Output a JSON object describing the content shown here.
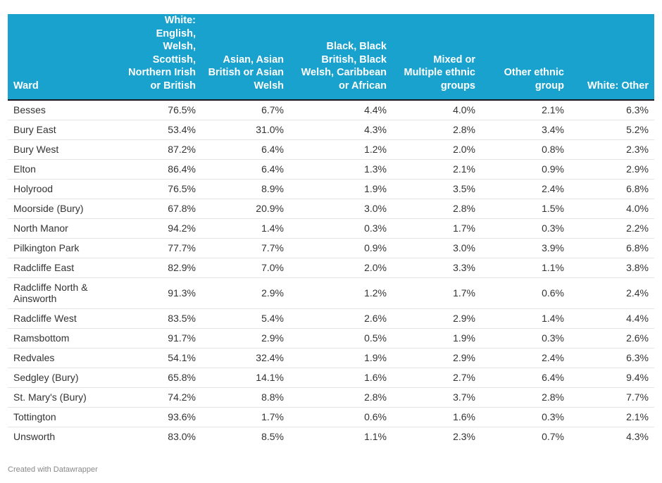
{
  "chart_data": {
    "type": "table",
    "columns": [
      "Ward",
      "White: English, Welsh, Scottish, Northern Irish or British",
      "Asian, Asian British or Asian Welsh",
      "Black, Black British, Black Welsh, Caribbean or African",
      "Mixed or Multiple ethnic groups",
      "Other ethnic group",
      "White: Other"
    ],
    "rows": [
      [
        "Besses",
        "76.5%",
        "6.7%",
        "4.4%",
        "4.0%",
        "2.1%",
        "6.3%"
      ],
      [
        "Bury East",
        "53.4%",
        "31.0%",
        "4.3%",
        "2.8%",
        "3.4%",
        "5.2%"
      ],
      [
        "Bury West",
        "87.2%",
        "6.4%",
        "1.2%",
        "2.0%",
        "0.8%",
        "2.3%"
      ],
      [
        "Elton",
        "86.4%",
        "6.4%",
        "1.3%",
        "2.1%",
        "0.9%",
        "2.9%"
      ],
      [
        "Holyrood",
        "76.5%",
        "8.9%",
        "1.9%",
        "3.5%",
        "2.4%",
        "6.8%"
      ],
      [
        "Moorside (Bury)",
        "67.8%",
        "20.9%",
        "3.0%",
        "2.8%",
        "1.5%",
        "4.0%"
      ],
      [
        "North Manor",
        "94.2%",
        "1.4%",
        "0.3%",
        "1.7%",
        "0.3%",
        "2.2%"
      ],
      [
        "Pilkington Park",
        "77.7%",
        "7.7%",
        "0.9%",
        "3.0%",
        "3.9%",
        "6.8%"
      ],
      [
        "Radcliffe East",
        "82.9%",
        "7.0%",
        "2.0%",
        "3.3%",
        "1.1%",
        "3.8%"
      ],
      [
        "Radcliffe North & Ainsworth",
        "91.3%",
        "2.9%",
        "1.2%",
        "1.7%",
        "0.6%",
        "2.4%"
      ],
      [
        "Radcliffe West",
        "83.5%",
        "5.4%",
        "2.6%",
        "2.9%",
        "1.4%",
        "4.4%"
      ],
      [
        "Ramsbottom",
        "91.7%",
        "2.9%",
        "0.5%",
        "1.9%",
        "0.3%",
        "2.6%"
      ],
      [
        "Redvales",
        "54.1%",
        "32.4%",
        "1.9%",
        "2.9%",
        "2.4%",
        "6.3%"
      ],
      [
        "Sedgley (Bury)",
        "65.8%",
        "14.1%",
        "1.6%",
        "2.7%",
        "6.4%",
        "9.4%"
      ],
      [
        "St. Mary's (Bury)",
        "74.2%",
        "8.8%",
        "2.8%",
        "3.7%",
        "2.8%",
        "7.7%"
      ],
      [
        "Tottington",
        "93.6%",
        "1.7%",
        "0.6%",
        "1.6%",
        "0.3%",
        "2.1%"
      ],
      [
        "Unsworth",
        "83.0%",
        "8.5%",
        "1.1%",
        "2.3%",
        "0.7%",
        "4.3%"
      ]
    ],
    "header_color": "#1aa2cf"
  },
  "footer": {
    "credit": "Created with Datawrapper"
  }
}
